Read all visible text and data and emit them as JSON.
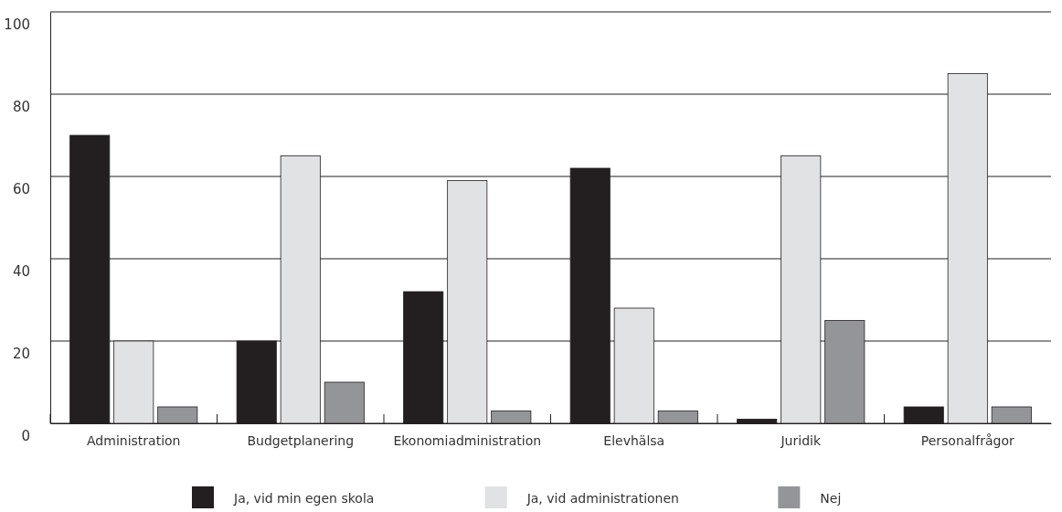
{
  "chart_data": {
    "type": "bar",
    "categories": [
      "Administration",
      "Budgetplanering",
      "Ekonomiadministration",
      "Elevhälsa",
      "Juridik",
      "Personalfrågor"
    ],
    "series": [
      {
        "name": "Ja, vid min egen skola",
        "color": "#231f20",
        "values": [
          70,
          20,
          32,
          62,
          1,
          4
        ]
      },
      {
        "name": "Ja, vid administrationen",
        "color": "#e1e2e4",
        "values": [
          20,
          65,
          59,
          28,
          65,
          85
        ]
      },
      {
        "name": "Nej",
        "color": "#939598",
        "values": [
          4,
          10,
          3,
          3,
          25,
          4
        ]
      }
    ],
    "ylim": [
      0,
      100
    ],
    "yticks": [
      0,
      20,
      40,
      60,
      80,
      100
    ],
    "grid": "y",
    "legend": "bottom"
  }
}
